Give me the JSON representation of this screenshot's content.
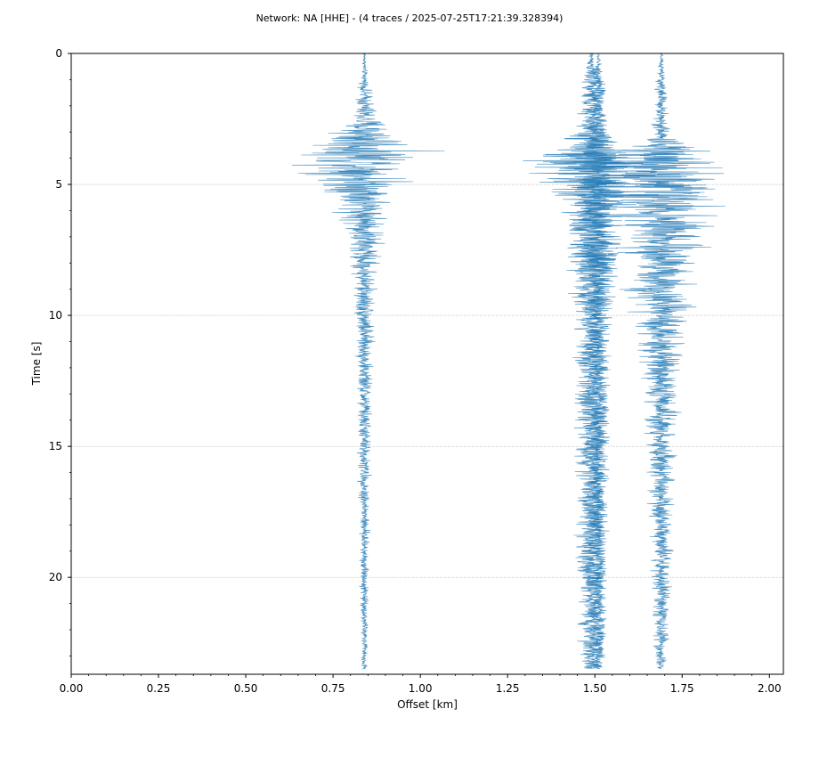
{
  "chart_data": {
    "type": "line",
    "title": "Network: NA [HHE] - (4 traces / 2025-07-25T17:21:39.328394)",
    "xlabel": "Offset [km]",
    "ylabel": "Time [s]",
    "xlim": [
      0.0,
      2.04
    ],
    "ylim": [
      23.7,
      0.0
    ],
    "x_ticks": [
      "0.00",
      "0.25",
      "0.50",
      "0.75",
      "1.00",
      "1.25",
      "1.50",
      "1.75",
      "2.00"
    ],
    "x_tick_values": [
      0.0,
      0.25,
      0.5,
      0.75,
      1.0,
      1.25,
      1.5,
      1.75,
      2.0
    ],
    "y_ticks": [
      "0",
      "5",
      "10",
      "15",
      "20"
    ],
    "y_tick_values": [
      0,
      5,
      10,
      15,
      20
    ],
    "grid": "horizontal dotted at major y ticks",
    "line_color": "#1f77b4",
    "traces": [
      {
        "offset": 0.84,
        "envelope": [
          [
            0.0,
            0.005
          ],
          [
            1.0,
            0.015
          ],
          [
            2.5,
            0.06
          ],
          [
            3.4,
            0.22
          ],
          [
            4.0,
            0.25
          ],
          [
            4.8,
            0.2
          ],
          [
            5.6,
            0.12
          ],
          [
            7.0,
            0.08
          ],
          [
            8.5,
            0.05
          ],
          [
            11.0,
            0.035
          ],
          [
            16.0,
            0.025
          ],
          [
            23.5,
            0.012
          ]
        ]
      },
      {
        "offset": 1.49,
        "envelope": [
          [
            0.0,
            0.008
          ],
          [
            1.0,
            0.045
          ],
          [
            3.0,
            0.06
          ],
          [
            3.6,
            0.18
          ],
          [
            4.0,
            0.28
          ],
          [
            5.0,
            0.22
          ],
          [
            6.0,
            0.14
          ],
          [
            8.0,
            0.1
          ],
          [
            10.0,
            0.07
          ],
          [
            15.0,
            0.06
          ],
          [
            20.0,
            0.055
          ],
          [
            23.5,
            0.04
          ]
        ]
      },
      {
        "offset": 1.51,
        "envelope": [
          [
            0.0,
            0.005
          ],
          [
            1.0,
            0.025
          ],
          [
            3.0,
            0.04
          ],
          [
            3.7,
            0.1
          ],
          [
            4.3,
            0.14
          ],
          [
            6.0,
            0.1
          ],
          [
            8.0,
            0.07
          ],
          [
            12.0,
            0.045
          ],
          [
            18.0,
            0.04
          ],
          [
            23.5,
            0.03
          ]
        ]
      },
      {
        "offset": 1.69,
        "envelope": [
          [
            0.0,
            0.005
          ],
          [
            1.0,
            0.02
          ],
          [
            3.2,
            0.04
          ],
          [
            3.8,
            0.2
          ],
          [
            4.2,
            0.26
          ],
          [
            5.5,
            0.24
          ],
          [
            6.5,
            0.2
          ],
          [
            8.0,
            0.15
          ],
          [
            10.0,
            0.1
          ],
          [
            13.0,
            0.07
          ],
          [
            17.0,
            0.05
          ],
          [
            23.5,
            0.025
          ]
        ]
      }
    ]
  }
}
